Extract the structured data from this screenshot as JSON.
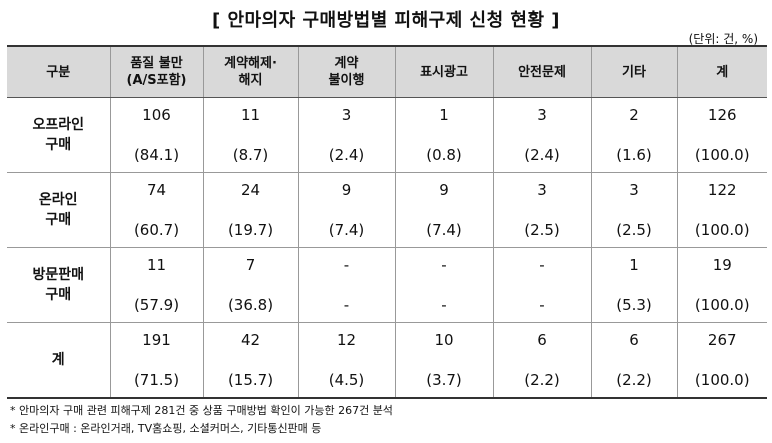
{
  "title": "[ 안마의자 구매방법별 피해구제 신청 현황 ]",
  "unit": "(단위: 건, %)",
  "header": {
    "label": "구분",
    "columns": [
      "품질 불만\n(A/S포함)",
      "계약해제·\n해지",
      "계약\n불이행",
      "표시광고",
      "안전문제",
      "기타",
      "계"
    ]
  },
  "rows": [
    {
      "label": "오프라인\n구매",
      "cells": [
        {
          "count": "106",
          "pct": "(84.1)"
        },
        {
          "count": "11",
          "pct": "(8.7)"
        },
        {
          "count": "3",
          "pct": "(2.4)"
        },
        {
          "count": "1",
          "pct": "(0.8)"
        },
        {
          "count": "3",
          "pct": "(2.4)"
        },
        {
          "count": "2",
          "pct": "(1.6)"
        },
        {
          "count": "126",
          "pct": "(100.0)"
        }
      ]
    },
    {
      "label": "온라인\n구매",
      "cells": [
        {
          "count": "74",
          "pct": "(60.7)"
        },
        {
          "count": "24",
          "pct": "(19.7)"
        },
        {
          "count": "9",
          "pct": "(7.4)"
        },
        {
          "count": "9",
          "pct": "(7.4)"
        },
        {
          "count": "3",
          "pct": "(2.5)"
        },
        {
          "count": "3",
          "pct": "(2.5)"
        },
        {
          "count": "122",
          "pct": "(100.0)"
        }
      ]
    },
    {
      "label": "방문판매\n구매",
      "cells": [
        {
          "count": "11",
          "pct": "(57.9)"
        },
        {
          "count": "7",
          "pct": "(36.8)"
        },
        {
          "count": "-",
          "pct": "-"
        },
        {
          "count": "-",
          "pct": "-"
        },
        {
          "count": "-",
          "pct": "-"
        },
        {
          "count": "1",
          "pct": "(5.3)"
        },
        {
          "count": "19",
          "pct": "(100.0)"
        }
      ]
    },
    {
      "label": "계",
      "cells": [
        {
          "count": "191",
          "pct": "(71.5)"
        },
        {
          "count": "42",
          "pct": "(15.7)"
        },
        {
          "count": "12",
          "pct": "(4.5)"
        },
        {
          "count": "10",
          "pct": "(3.7)"
        },
        {
          "count": "6",
          "pct": "(2.2)"
        },
        {
          "count": "6",
          "pct": "(2.2)"
        },
        {
          "count": "267",
          "pct": "(100.0)"
        }
      ]
    }
  ],
  "notes": [
    "* 안마의자 구매 관련 피해구제 281건 중 상품 구매방법 확인이 가능한 267건 분석",
    "* 온라인구매 : 온라인거래, TV홈쇼핑, 소셜커머스, 기타통신판매 등"
  ]
}
